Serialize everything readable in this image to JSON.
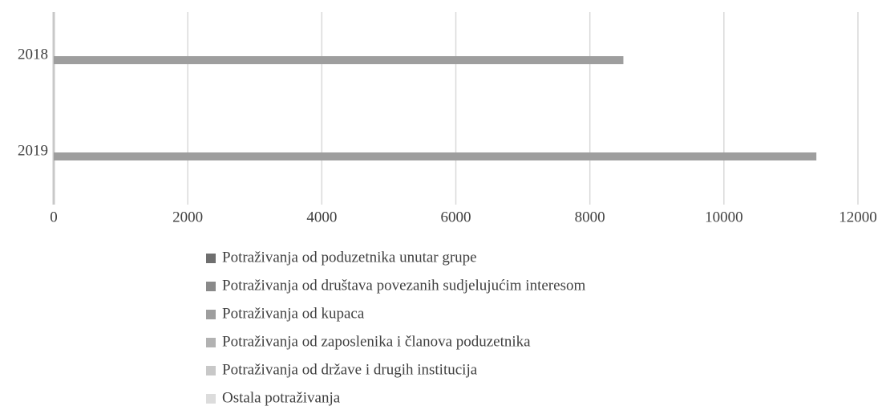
{
  "chart_data": {
    "type": "stacked-barh",
    "categories": [
      "2018",
      "2019"
    ],
    "series": [
      {
        "name": "Potraživanja od poduzetnika unutar grupe",
        "color": "#6f6f6f",
        "values": [
          0,
          0
        ]
      },
      {
        "name": "Potraživanja od društava povezanih sudjelujućim interesom",
        "color": "#8a8a8a",
        "values": [
          0,
          0
        ]
      },
      {
        "name": "Potraživanja od kupaca",
        "color": "#9e9e9e",
        "values": [
          8500,
          11380
        ]
      },
      {
        "name": "Potraživanja od zaposlenika i članova poduzetnika",
        "color": "#b2b2b2",
        "values": [
          0,
          0
        ]
      },
      {
        "name": "Potraživanja od države i drugih institucija",
        "color": "#c8c8c8",
        "values": [
          0,
          0
        ]
      },
      {
        "name": "Ostala potraživanja",
        "color": "#dcdcdc",
        "values": [
          0,
          0
        ]
      }
    ],
    "xlim": [
      0,
      12000
    ],
    "xticks": [
      0,
      2000,
      4000,
      6000,
      8000,
      10000,
      12000
    ],
    "grid": true,
    "legend": "bottom"
  }
}
